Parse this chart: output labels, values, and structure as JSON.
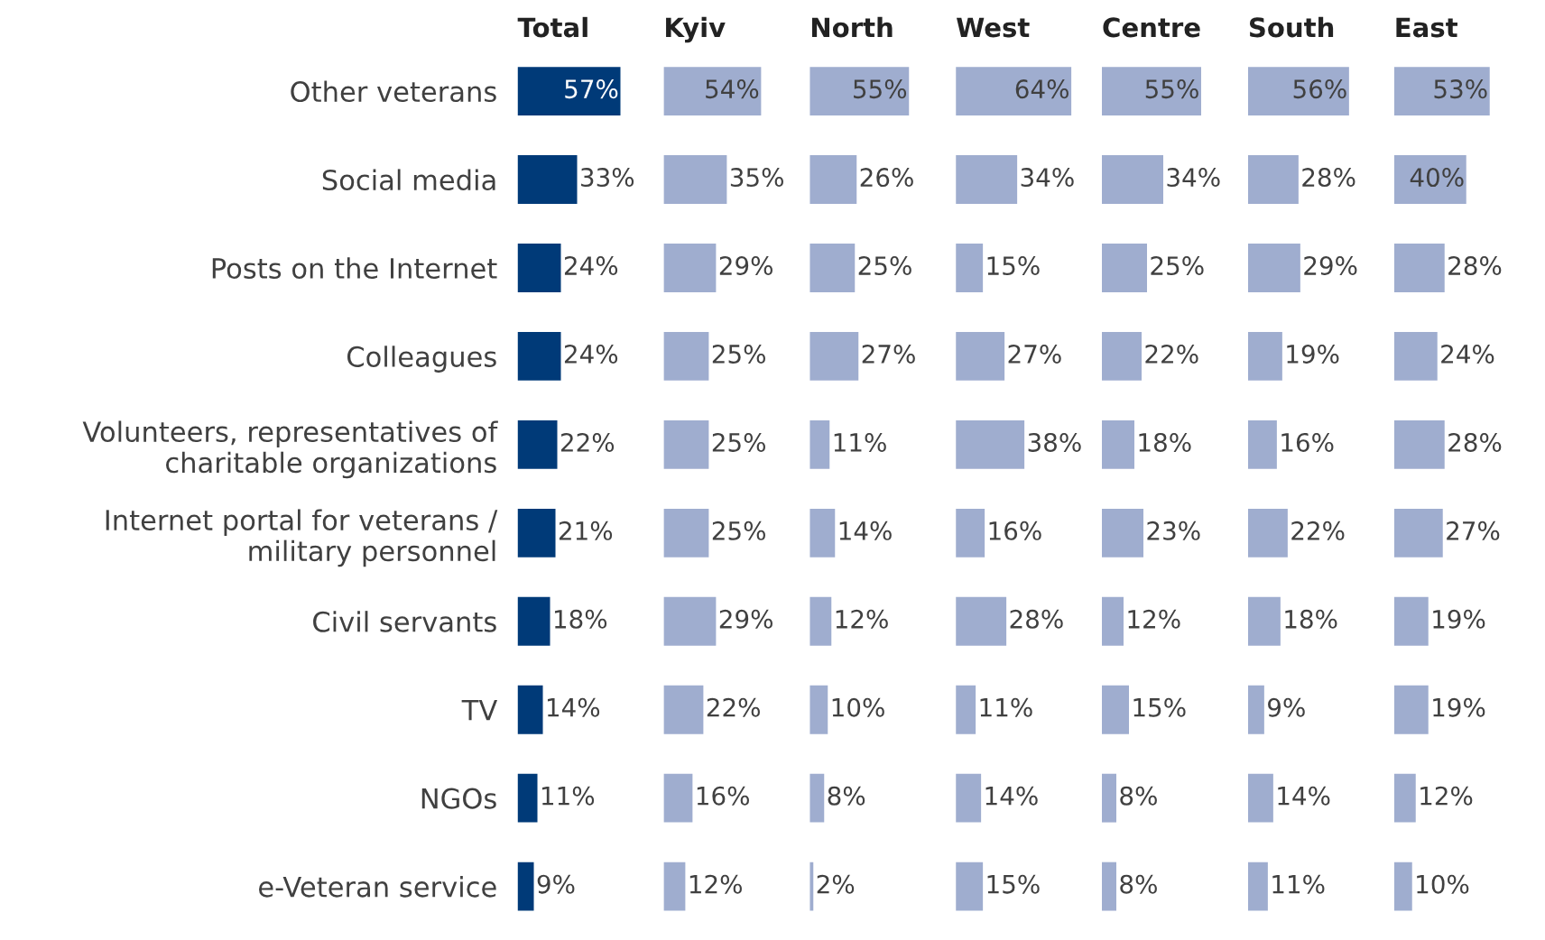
{
  "chart_data": [
    {
      "type": "bar",
      "orientation": "horizontal",
      "title": "Total",
      "tick_labels": "y",
      "color": "#003a78",
      "categories": [
        "Other veterans",
        "Social media",
        "Posts on the Internet",
        "Colleagues",
        "Volunteers, representatives of\ncharitable organizations",
        "Internet portal for veterans /\nmilitary personnel",
        "Civil servants",
        "TV",
        "NGOs",
        "e-Veteran service"
      ],
      "values": [
        57,
        33,
        24,
        24,
        22,
        21,
        18,
        14,
        11,
        9
      ],
      "value_labels": [
        "57%",
        "33%",
        "24%",
        "24%",
        "22%",
        "21%",
        "18%",
        "14%",
        "11%",
        "9%"
      ]
    },
    {
      "type": "bar",
      "orientation": "horizontal",
      "title": "Kyiv",
      "tick_labels": false,
      "color": "#9fadcf",
      "categories": [
        null,
        null,
        null,
        null,
        null,
        null,
        null,
        null,
        null,
        null
      ],
      "values": [
        54,
        35,
        29,
        25,
        25,
        25,
        29,
        22,
        16,
        12
      ],
      "value_labels": [
        "54%",
        "35%",
        "29%",
        "25%",
        "25%",
        "25%",
        "29%",
        "22%",
        "16%",
        "12%"
      ]
    },
    {
      "type": "bar",
      "orientation": "horizontal",
      "title": "North",
      "tick_labels": false,
      "color": "#9fadcf",
      "categories": [
        null,
        null,
        null,
        null,
        null,
        null,
        null,
        null,
        null,
        null
      ],
      "values": [
        55,
        26,
        25,
        27,
        11,
        14,
        12,
        10,
        8,
        2
      ],
      "value_labels": [
        "55%",
        "26%",
        "25%",
        "27%",
        "11%",
        "14%",
        "12%",
        "10%",
        "8%",
        "2%"
      ]
    },
    {
      "type": "bar",
      "orientation": "horizontal",
      "title": "West",
      "tick_labels": false,
      "color": "#9fadcf",
      "categories": [
        null,
        null,
        null,
        null,
        null,
        null,
        null,
        null,
        null,
        null
      ],
      "values": [
        64,
        34,
        15,
        27,
        38,
        16,
        28,
        11,
        14,
        15
      ],
      "value_labels": [
        "64%",
        "34%",
        "15%",
        "27%",
        "38%",
        "16%",
        "28%",
        "11%",
        "14%",
        "15%"
      ]
    },
    {
      "type": "bar",
      "orientation": "horizontal",
      "title": "Centre",
      "tick_labels": false,
      "color": "#9fadcf",
      "categories": [
        null,
        null,
        null,
        null,
        null,
        null,
        null,
        null,
        null,
        null
      ],
      "values": [
        55,
        34,
        25,
        22,
        18,
        23,
        12,
        15,
        8,
        8
      ],
      "value_labels": [
        "55%",
        "34%",
        "25%",
        "22%",
        "18%",
        "23%",
        "12%",
        "15%",
        "8%",
        "8%"
      ]
    },
    {
      "type": "bar",
      "orientation": "horizontal",
      "title": "South",
      "tick_labels": false,
      "color": "#9fadcf",
      "categories": [
        null,
        null,
        null,
        null,
        null,
        null,
        null,
        null,
        null,
        null
      ],
      "values": [
        56,
        28,
        29,
        19,
        16,
        22,
        18,
        9,
        14,
        11
      ],
      "value_labels": [
        "56%",
        "28%",
        "29%",
        "19%",
        "16%",
        "22%",
        "18%",
        "9%",
        "14%",
        "11%"
      ]
    },
    {
      "type": "bar",
      "orientation": "horizontal",
      "title": "East",
      "tick_labels": false,
      "color": "#9fadcf",
      "categories": [
        null,
        null,
        null,
        null,
        null,
        null,
        null,
        null,
        null,
        null
      ],
      "values": [
        53,
        40,
        28,
        24,
        28,
        27,
        19,
        19,
        12,
        10
      ],
      "value_labels": [
        "53%",
        "40%",
        "28%",
        "24%",
        "28%",
        "27%",
        "19%",
        "19%",
        "12%",
        "10%"
      ]
    }
  ]
}
